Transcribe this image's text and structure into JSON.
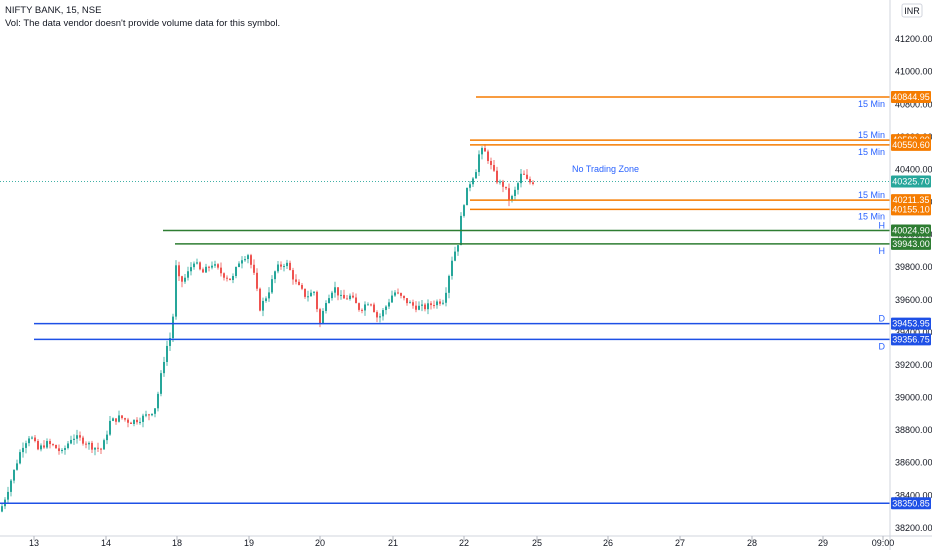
{
  "header": {
    "symbol_line": "NIFTY BANK, 15, NSE",
    "volume_note": "Vol: The data vendor doesn't provide volume data for this symbol."
  },
  "currency_button": "INR",
  "chart_data": {
    "type": "candlestick",
    "title": "NIFTY BANK, 15, NSE",
    "ylim": [
      38150,
      41440
    ],
    "y_ticks": [
      38200,
      38400,
      38600,
      38800,
      39000,
      39200,
      39400,
      39600,
      39800,
      40000,
      40200,
      40400,
      40600,
      40800,
      41000,
      41200
    ],
    "x_ticks": [
      "13",
      "14",
      "18",
      "19",
      "20",
      "21",
      "22",
      "25",
      "26",
      "27",
      "28",
      "29",
      "09:00"
    ],
    "grid": false,
    "current_price": {
      "value": "40325.70",
      "color": "#26a69a"
    },
    "colors": {
      "up": "#26a69a",
      "down": "#ef5350",
      "orange": "#f57c00",
      "green": "#2e7d32",
      "blue": "#1e50e6"
    },
    "levels": [
      {
        "value": "40844.95",
        "color": "orange",
        "label": "15 Min",
        "from_day": "22"
      },
      {
        "value": "40580.00",
        "color": "orange",
        "label": "15 Min",
        "from_day": "22"
      },
      {
        "value": "40550.60",
        "color": "orange",
        "label": "15 Min",
        "from_day": "22"
      },
      {
        "value": "40211.35",
        "color": "orange",
        "label": "15 Min",
        "from_day": "22"
      },
      {
        "value": "40155.10",
        "color": "orange",
        "label": "15 Min",
        "from_day": "22"
      },
      {
        "value": "40024.90",
        "color": "green",
        "label": "H",
        "from_day": "18"
      },
      {
        "value": "39943.00",
        "color": "green",
        "label": "H",
        "from_day": "18"
      },
      {
        "value": "39453.95",
        "color": "blue",
        "label": "D",
        "from_day": "13"
      },
      {
        "value": "39356.75",
        "color": "blue",
        "label": "D",
        "from_day": "13"
      },
      {
        "value": "38350.85",
        "color": "blue",
        "label": "",
        "from_day": "13"
      }
    ],
    "annotations": [
      {
        "text": "No Trading Zone",
        "color": "#2962ff"
      }
    ],
    "price_path": [
      [
        0,
        38300
      ],
      [
        6,
        38400
      ],
      [
        14,
        38550
      ],
      [
        22,
        38700
      ],
      [
        30,
        38770
      ],
      [
        38,
        38680
      ],
      [
        46,
        38720
      ],
      [
        54,
        38700
      ],
      [
        62,
        38660
      ],
      [
        72,
        38760
      ],
      [
        82,
        38740
      ],
      [
        92,
        38700
      ],
      [
        102,
        38680
      ],
      [
        110,
        38850
      ],
      [
        120,
        38880
      ],
      [
        130,
        38850
      ],
      [
        140,
        38870
      ],
      [
        150,
        38900
      ],
      [
        156,
        38950
      ],
      [
        160,
        39100
      ],
      [
        166,
        39300
      ],
      [
        172,
        39400
      ],
      [
        176,
        39800
      ],
      [
        180,
        39700
      ],
      [
        186,
        39740
      ],
      [
        194,
        39840
      ],
      [
        202,
        39760
      ],
      [
        212,
        39820
      ],
      [
        222,
        39760
      ],
      [
        232,
        39720
      ],
      [
        240,
        39850
      ],
      [
        248,
        39880
      ],
      [
        254,
        39750
      ],
      [
        260,
        39550
      ],
      [
        268,
        39640
      ],
      [
        276,
        39790
      ],
      [
        286,
        39830
      ],
      [
        296,
        39700
      ],
      [
        306,
        39620
      ],
      [
        314,
        39650
      ],
      [
        320,
        39450
      ],
      [
        326,
        39600
      ],
      [
        334,
        39680
      ],
      [
        342,
        39600
      ],
      [
        350,
        39620
      ],
      [
        360,
        39540
      ],
      [
        370,
        39600
      ],
      [
        378,
        39480
      ],
      [
        386,
        39560
      ],
      [
        394,
        39650
      ],
      [
        404,
        39600
      ],
      [
        414,
        39560
      ],
      [
        424,
        39550
      ],
      [
        434,
        39580
      ],
      [
        444,
        39600
      ],
      [
        452,
        39850
      ],
      [
        458,
        39950
      ],
      [
        462,
        40150
      ],
      [
        466,
        40250
      ],
      [
        470,
        40320
      ],
      [
        476,
        40400
      ],
      [
        480,
        40520
      ],
      [
        486,
        40500
      ],
      [
        492,
        40400
      ],
      [
        498,
        40320
      ],
      [
        504,
        40300
      ],
      [
        510,
        40200
      ],
      [
        516,
        40280
      ],
      [
        522,
        40380
      ],
      [
        528,
        40320
      ],
      [
        534,
        40325.7
      ]
    ]
  }
}
